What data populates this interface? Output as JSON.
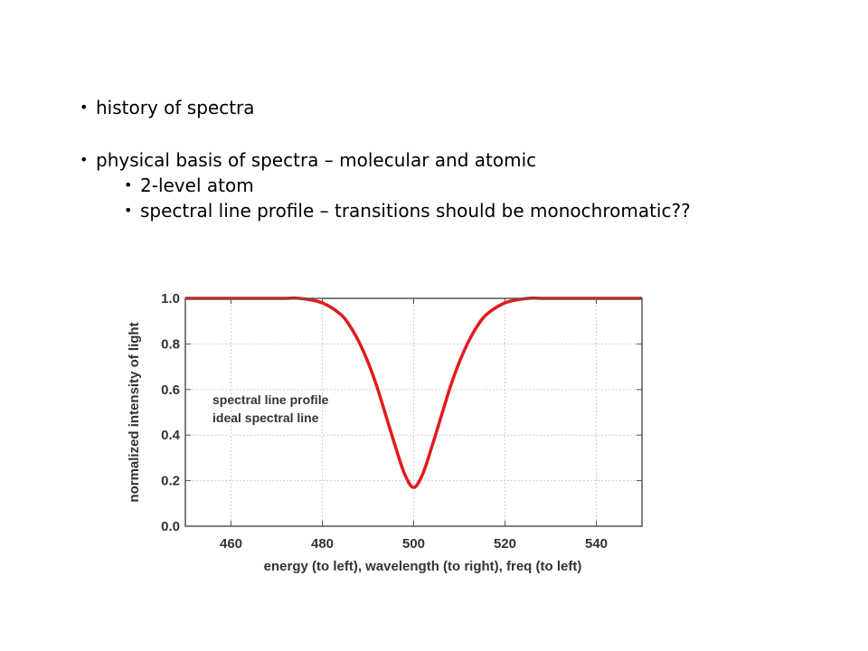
{
  "bullets": [
    {
      "text": "history of spectra",
      "level": 1
    },
    {
      "text": "physical basis of spectra – molecular and atomic",
      "level": 1
    },
    {
      "text": "2-level atom",
      "level": 2
    },
    {
      "text": "spectral line profile – transitions should be monochromatic??",
      "level": 2
    }
  ],
  "bullet_glyph": "•",
  "chart_data": {
    "type": "line",
    "xlabel": "energy (to left), wavelength (to right), freq (to left)",
    "ylabel": "normalized intensity of light",
    "xlim": [
      450,
      550
    ],
    "ylim": [
      0.0,
      1.0
    ],
    "xticks": [
      "460",
      "480",
      "500",
      "520",
      "540"
    ],
    "yticks": [
      "0.0",
      "0.2",
      "0.4",
      "0.6",
      "0.8",
      "1.0"
    ],
    "grid": true,
    "annotations": [
      "spectral line profile",
      "ideal spectral line"
    ],
    "series": [
      {
        "color": "#e31a1c",
        "x": [
          450,
          470,
          475,
          480,
          484,
          486,
          488,
          490,
          492,
          494,
          496,
          498,
          500,
          502,
          504,
          506,
          508,
          510,
          512,
          514,
          516,
          520,
          525,
          530,
          550
        ],
        "y": [
          1.0,
          1.0,
          1.0,
          0.98,
          0.93,
          0.88,
          0.81,
          0.72,
          0.61,
          0.48,
          0.35,
          0.23,
          0.17,
          0.23,
          0.35,
          0.48,
          0.61,
          0.72,
          0.81,
          0.88,
          0.93,
          0.98,
          1.0,
          1.0,
          1.0
        ]
      }
    ]
  }
}
